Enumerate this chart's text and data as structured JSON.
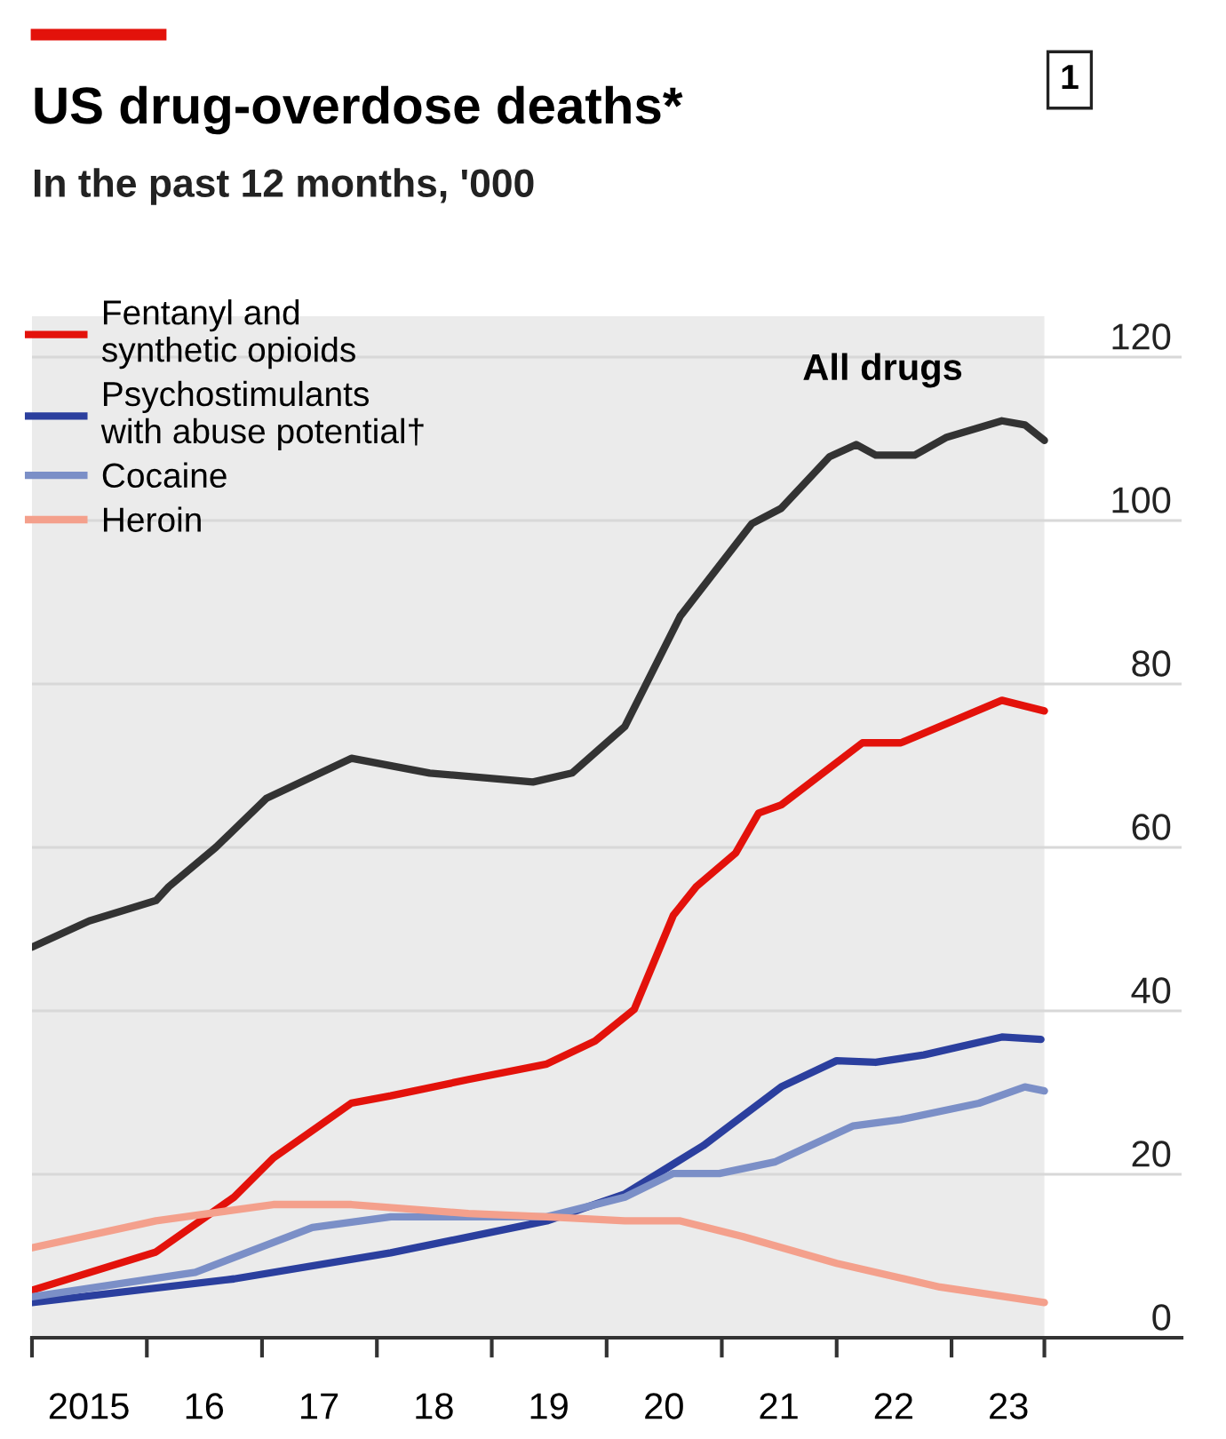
{
  "chart_data": {
    "type": "line",
    "title": "US drug-overdose deaths*",
    "subtitle": "In the past 12 months, '000",
    "annotations": [
      "All drugs",
      "1"
    ],
    "series": [
      {
        "name": "Fentanyl and\nsynthetic opioids",
        "color": "#e3120b",
        "x": [
          "2015-01-01",
          "2016-01-30",
          "2016-10-04",
          "2017-02-06",
          "2017-10-12",
          "2018-02-14",
          "2018-10-19",
          "2019-06-25",
          "2019-11-25",
          "2020-03-29",
          "2020-07-31",
          "2020-10-12",
          "2021-02-14",
          "2021-04-28",
          "2021-07-09",
          "2022-03-24",
          "2022-07-24",
          "2022-11-25",
          "2023-06-10",
          "2023-10-23"
        ],
        "values": [
          5.8,
          10.5,
          17.2,
          22,
          28.7,
          29.6,
          31.6,
          33.5,
          36.3,
          40.2,
          51.7,
          55.2,
          59.3,
          64.2,
          65.2,
          72.8,
          72.8,
          74.8,
          78,
          76.7
        ]
      },
      {
        "name": "Psychostimulants\nwith abuse potential†",
        "color": "#2b3f9e",
        "x": [
          "2015-01-01",
          "2016-10-04",
          "2018-02-14",
          "2019-06-25",
          "2020-02-28",
          "2020-11-03",
          "2021-07-09",
          "2022-01-01",
          "2022-05-05",
          "2022-10-05",
          "2023-06-10",
          "2023-10-12"
        ],
        "values": [
          4.3,
          7.2,
          10.4,
          14.3,
          17.6,
          23.5,
          30.7,
          33.9,
          33.7,
          34.6,
          36.8,
          36.5
        ]
      },
      {
        "name": "Cocaine",
        "color": "#7b8fc7",
        "x": [
          "2015-01-01",
          "2016-06-03",
          "2017-06-10",
          "2018-02-14",
          "2019-06-25",
          "2020-02-28",
          "2020-07-31",
          "2020-12-24",
          "2021-06-18",
          "2022-02-21",
          "2022-07-24",
          "2023-03-29",
          "2023-08-22",
          "2023-10-23"
        ],
        "values": [
          5.0,
          8.0,
          13.5,
          14.8,
          14.8,
          17.2,
          20.1,
          20.1,
          21.5,
          25.9,
          26.7,
          28.7,
          30.7,
          30.2
        ]
      },
      {
        "name": "Heroin",
        "color": "#f4a08c",
        "x": [
          "2015-01-01",
          "2016-01-30",
          "2017-02-06",
          "2017-10-12",
          "2018-10-19",
          "2019-06-25",
          "2020-02-28",
          "2020-08-22",
          "2021-03-08",
          "2022-01-01",
          "2022-11-25",
          "2023-10-23"
        ],
        "values": [
          11.0,
          14.3,
          16.3,
          16.3,
          15.2,
          14.8,
          14.3,
          14.3,
          12.4,
          9.1,
          6.2,
          4.3
        ]
      },
      {
        "color": "#333333",
        "x": [
          "2015-01-01",
          "2015-07-02",
          "2016-01-30",
          "2016-03-11",
          "2016-08-07",
          "2017-01-15",
          "2017-10-12",
          "2018-06-18",
          "2019-05-12",
          "2019-09-13",
          "2020-02-28",
          "2020-08-22",
          "2021-04-06",
          "2021-07-09",
          "2021-12-09",
          "2022-03-04",
          "2022-05-05",
          "2022-09-06",
          "2022-12-17",
          "2023-06-10",
          "2023-08-22",
          "2023-10-23"
        ],
        "values": [
          47.8,
          51,
          53.5,
          55.2,
          60,
          66,
          70.9,
          69.1,
          68,
          69.1,
          74.8,
          88.3,
          99.6,
          101.5,
          107.8,
          109.3,
          108,
          108,
          110.2,
          112.2,
          111.7,
          109.8
        ]
      }
    ],
    "xlim": [
      "2015-01-01",
      "2025-01-01"
    ],
    "ylim": [
      0,
      125
    ],
    "xticks": [
      {
        "value": "2015-01-01",
        "label": null
      },
      {
        "value": "2015-07-01",
        "label": "2015"
      },
      {
        "value": "2016-01-01",
        "label": null
      },
      {
        "value": "2016-07-01",
        "label": "16"
      },
      {
        "value": "2017-01-01",
        "label": null
      },
      {
        "value": "2017-07-01",
        "label": "17"
      },
      {
        "value": "2018-01-01",
        "label": null
      },
      {
        "value": "2018-07-01",
        "label": "18"
      },
      {
        "value": "2019-01-01",
        "label": null
      },
      {
        "value": "2019-07-01",
        "label": "19"
      },
      {
        "value": "2020-01-01",
        "label": null
      },
      {
        "value": "2020-07-01",
        "label": "20"
      },
      {
        "value": "2021-01-01",
        "label": null
      },
      {
        "value": "2021-07-01",
        "label": "21"
      },
      {
        "value": "2022-01-01",
        "label": null
      },
      {
        "value": "2022-07-01",
        "label": "22"
      },
      {
        "value": "2023-01-01",
        "label": null
      },
      {
        "value": "2023-07-01",
        "label": "23"
      },
      {
        "value": "2023-10-23",
        "label": null
      }
    ],
    "yticks": [
      0,
      20,
      40,
      60,
      80,
      100,
      120
    ],
    "bands": [
      {
        "axis": "x",
        "from": "2015-01-01",
        "to": "2023-10-23",
        "color": "#ebebeb"
      }
    ],
    "grid": "y",
    "legend": "top left",
    "line_style": "solid",
    "marker": "none"
  }
}
